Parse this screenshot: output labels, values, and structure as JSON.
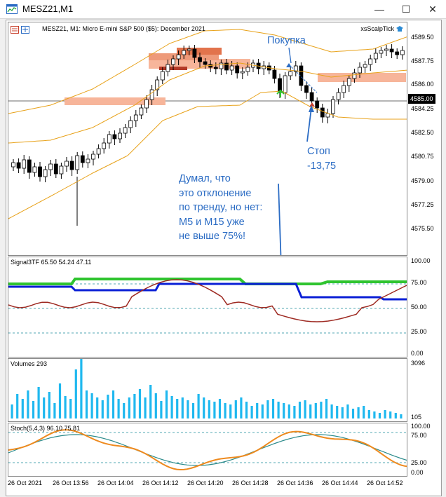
{
  "window": {
    "title": "MESZ21,M1",
    "minimize": "—",
    "maximize": "☐",
    "close": "✕"
  },
  "chart": {
    "symbol_label": "MESZ21, M1:  Micro E-mini S&P 500 ($5): December 2021",
    "brand": "xsScalpTick",
    "price_ticks": [
      "4589.50",
      "4587.75",
      "4586.00",
      "4584.25",
      "4582.50",
      "4580.75",
      "4579.00",
      "4577.25",
      "4575.50"
    ],
    "current_price": "4585.00",
    "annotations": {
      "buy": "Покупка",
      "stop_line1": "Стоп",
      "stop_line2": "-13,75",
      "note_lines": [
        "Думал, что",
        "это отклонение",
        "по тренду, но нет:",
        "M5 и M15 уже",
        "не выше 75%!"
      ]
    }
  },
  "signal": {
    "label": "Signal3TF 65.50 54.24 47.11",
    "ticks": [
      "100.00",
      "75.00",
      "50.00",
      "25.00",
      "0.00"
    ]
  },
  "volumes": {
    "label": "Volumes 293",
    "ticks": [
      "3096",
      "105"
    ]
  },
  "stoch": {
    "label": "Stoch(5,4,3) 96.10 75.81",
    "ticks": [
      "100.00",
      "75.00",
      "25.00",
      "0.00"
    ]
  },
  "time_axis": [
    "26 Oct 2021",
    "26 Oct 13:56",
    "26 Oct 14:04",
    "26 Oct 14:12",
    "26 Oct 14:20",
    "26 Oct 14:28",
    "26 Oct 14:36",
    "26 Oct 14:44",
    "26 Oct 14:52"
  ],
  "colors": {
    "bull": "#ffffff",
    "bear": "#000000",
    "bands": "#e8a21a",
    "zone": "#f7b59a",
    "zone_dark": "#e2734c",
    "annotation": "#2b6cc4",
    "signal_fast": "#2fc42f",
    "signal_mid": "#0a1fd6",
    "signal_slow": "#9e2a22",
    "volume": "#1fb8ef",
    "stoch_main": "#2a8a8a",
    "stoch_signal": "#ee8a1e"
  }
}
